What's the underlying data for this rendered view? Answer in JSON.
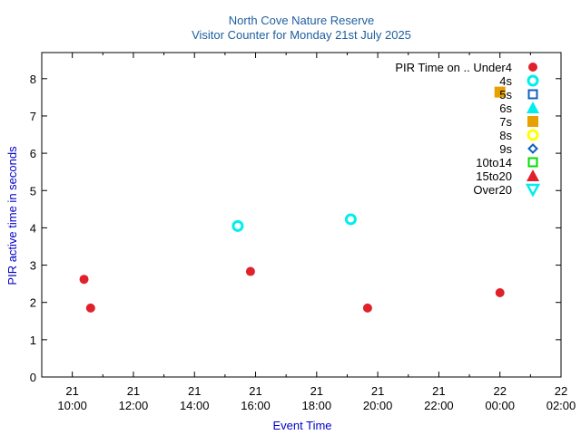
{
  "colors": {
    "title": "#2060a0",
    "axis_label": "#0000cc",
    "red": "#e0202a",
    "cyan": "#00eeee",
    "blue": "#1060c0",
    "orange": "#e8a000",
    "yellow": "#ffff00",
    "green": "#00dd00"
  },
  "chart_data": {
    "type": "scatter",
    "title": "North Cove Nature Reserve",
    "subtitle": "Visitor Counter for Monday 21st July 2025",
    "xlabel": "Event Time",
    "ylabel": "PIR active time in seconds",
    "xlim": [
      "2025-07-21 09:00",
      "2025-07-22 02:00"
    ],
    "ylim": [
      0,
      8.7
    ],
    "yticks": [
      0,
      1,
      2,
      3,
      4,
      5,
      6,
      7,
      8
    ],
    "xticks": [
      {
        "t": "2025-07-21 10:00",
        "day": "21",
        "time": "10:00"
      },
      {
        "t": "2025-07-21 12:00",
        "day": "21",
        "time": "12:00"
      },
      {
        "t": "2025-07-21 14:00",
        "day": "21",
        "time": "14:00"
      },
      {
        "t": "2025-07-21 16:00",
        "day": "21",
        "time": "16:00"
      },
      {
        "t": "2025-07-21 18:00",
        "day": "21",
        "time": "18:00"
      },
      {
        "t": "2025-07-21 20:00",
        "day": "21",
        "time": "20:00"
      },
      {
        "t": "2025-07-21 22:00",
        "day": "21",
        "time": "22:00"
      },
      {
        "t": "2025-07-22 00:00",
        "day": "22",
        "time": "00:00"
      },
      {
        "t": "2025-07-22 02:00",
        "day": "22",
        "time": "02:00"
      }
    ],
    "grid": false,
    "legend_title": "PIR Time on ..",
    "legend_position": "top-right",
    "series": [
      {
        "name": "Under4",
        "marker": "dot",
        "color": "#e0202a",
        "points": [
          {
            "x": "2025-07-21 10:23",
            "y": 2.62
          },
          {
            "x": "2025-07-21 10:36",
            "y": 1.85
          },
          {
            "x": "2025-07-21 15:50",
            "y": 2.83
          },
          {
            "x": "2025-07-21 19:40",
            "y": 1.85
          },
          {
            "x": "2025-07-22 00:00",
            "y": 2.26
          }
        ]
      },
      {
        "name": "4s",
        "marker": "ring",
        "color": "#00eeee",
        "points": [
          {
            "x": "2025-07-21 15:25",
            "y": 4.05
          },
          {
            "x": "2025-07-21 19:07",
            "y": 4.23
          }
        ]
      },
      {
        "name": "5s",
        "marker": "square-open",
        "color": "#1060c0",
        "points": []
      },
      {
        "name": "6s",
        "marker": "triangle",
        "color": "#00eeee",
        "points": []
      },
      {
        "name": "7s",
        "marker": "square",
        "color": "#e8a000",
        "points": [
          {
            "x": "2025-07-22 00:00",
            "y": 7.64
          }
        ]
      },
      {
        "name": "8s",
        "marker": "ring",
        "color": "#ffff00",
        "points": []
      },
      {
        "name": "9s",
        "marker": "diamond-open",
        "color": "#1060c0",
        "points": []
      },
      {
        "name": "10to14",
        "marker": "square-open",
        "color": "#00dd00",
        "points": []
      },
      {
        "name": "15to20",
        "marker": "triangle",
        "color": "#e0202a",
        "points": []
      },
      {
        "name": "Over20",
        "marker": "triangle-down-open",
        "color": "#00eeee",
        "points": []
      }
    ]
  }
}
